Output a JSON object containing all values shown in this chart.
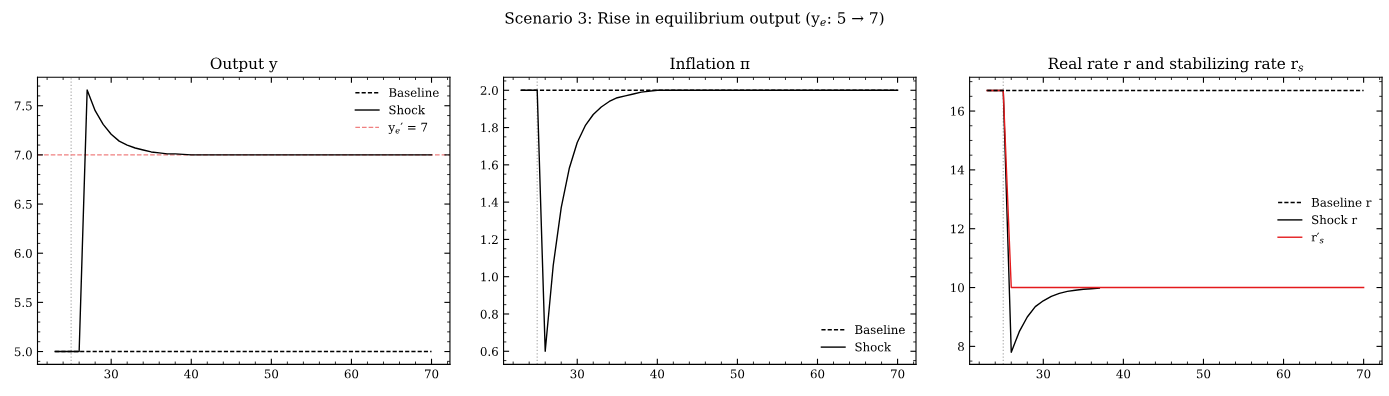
{
  "chart_data": [
    {
      "type": "other",
      "title": "Scenario 3: Rise in equilibrium output (y$_{e}$: 5 → 7)"
    },
    {
      "type": "line",
      "title": "Output y",
      "xlim": [
        20.8,
        72.3
      ],
      "xticks": [
        30,
        40,
        50,
        60,
        70
      ],
      "ylim": [
        4.87,
        7.79
      ],
      "yticks": [
        {
          "value": 5,
          "label": "5.0"
        },
        {
          "value": 5.5,
          "label": "5.5"
        },
        {
          "value": 6,
          "label": "6.0"
        },
        {
          "value": 6.5,
          "label": "6.5"
        },
        {
          "value": 7,
          "label": "7.0"
        },
        {
          "value": 7.5,
          "label": "7.5"
        }
      ],
      "grid": false,
      "legend": "top right",
      "series": [
        {
          "name": "Baseline",
          "color": "#000000",
          "line_style": "dashed",
          "x": [
            23,
            70
          ],
          "values": [
            5,
            5
          ]
        },
        {
          "name": "Shock",
          "color": "#000000",
          "line_style": "solid",
          "x": [
            23,
            24,
            25,
            26,
            27,
            28,
            29,
            30,
            31,
            32,
            33,
            34,
            35,
            36,
            37,
            38,
            40,
            70
          ],
          "values": [
            5,
            5,
            5,
            5,
            7.66,
            7.45,
            7.31,
            7.21,
            7.14,
            7.1,
            7.07,
            7.05,
            7.03,
            7.02,
            7.01,
            7.01,
            7.0,
            7.0
          ]
        }
      ],
      "ref_lines": [
        {
          "axis": "x",
          "value": 25,
          "color": "#b0b0b0",
          "line_style": "dotted"
        },
        {
          "axis": "y",
          "value": 7,
          "label": "y$_{e}$′ = 7",
          "color": "#f08080",
          "line_style": "dashed"
        }
      ]
    },
    {
      "type": "line",
      "title": "Inflation π",
      "xlim": [
        20.8,
        72.3
      ],
      "xticks": [
        30,
        40,
        50,
        60,
        70
      ],
      "ylim": [
        0.53,
        2.07
      ],
      "yticks": [
        {
          "value": 0.6,
          "label": "0.6"
        },
        {
          "value": 0.8,
          "label": "0.8"
        },
        {
          "value": 1.0,
          "label": "1.0"
        },
        {
          "value": 1.2,
          "label": "1.2"
        },
        {
          "value": 1.4,
          "label": "1.4"
        },
        {
          "value": 1.6,
          "label": "1.6"
        },
        {
          "value": 1.8,
          "label": "1.8"
        },
        {
          "value": 2.0,
          "label": "2.0"
        }
      ],
      "grid": false,
      "legend": "bottom right",
      "series": [
        {
          "name": "Baseline",
          "color": "#000000",
          "line_style": "dashed",
          "x": [
            23,
            70
          ],
          "values": [
            2,
            2
          ]
        },
        {
          "name": "Shock",
          "color": "#000000",
          "line_style": "solid",
          "x": [
            23,
            24,
            25,
            26,
            27,
            28,
            29,
            30,
            31,
            32,
            33,
            34,
            35,
            36,
            37,
            38,
            40,
            70
          ],
          "values": [
            2,
            2,
            2,
            0.6,
            1.06,
            1.37,
            1.58,
            1.72,
            1.81,
            1.87,
            1.91,
            1.94,
            1.96,
            1.97,
            1.98,
            1.99,
            2.0,
            2.0
          ]
        }
      ],
      "ref_lines": [
        {
          "axis": "x",
          "value": 25,
          "color": "#b0b0b0",
          "line_style": "dotted"
        }
      ]
    },
    {
      "type": "line",
      "title": "Real rate r and stabilizing rate r$_{s}$",
      "xlim": [
        20.8,
        72.3
      ],
      "xticks": [
        30,
        40,
        50,
        60,
        70
      ],
      "ylim": [
        7.39,
        17.15
      ],
      "yticks": [
        8,
        10,
        12,
        14,
        16
      ],
      "grid": false,
      "legend": "right",
      "series": [
        {
          "name": "Baseline r",
          "color": "#000000",
          "line_style": "dashed",
          "x": [
            23,
            70
          ],
          "values": [
            16.7,
            16.7
          ]
        },
        {
          "name": "Shock r",
          "color": "#000000",
          "line_style": "solid",
          "x": [
            23,
            24,
            25,
            26,
            27,
            28,
            29,
            30,
            31,
            32,
            33,
            34,
            35,
            36,
            37
          ],
          "values": [
            16.7,
            16.7,
            16.7,
            7.8,
            8.5,
            9.0,
            9.35,
            9.55,
            9.7,
            9.8,
            9.87,
            9.91,
            9.94,
            9.96,
            9.98
          ]
        },
        {
          "name": "r′$_{s}$",
          "color": "#e41a1c",
          "line_style": "solid",
          "x": [
            23,
            24,
            25,
            26,
            70
          ],
          "values": [
            16.7,
            16.7,
            16.7,
            10,
            10
          ]
        }
      ],
      "ref_lines": [
        {
          "axis": "x",
          "value": 25,
          "color": "#b0b0b0",
          "line_style": "dotted"
        }
      ]
    }
  ]
}
